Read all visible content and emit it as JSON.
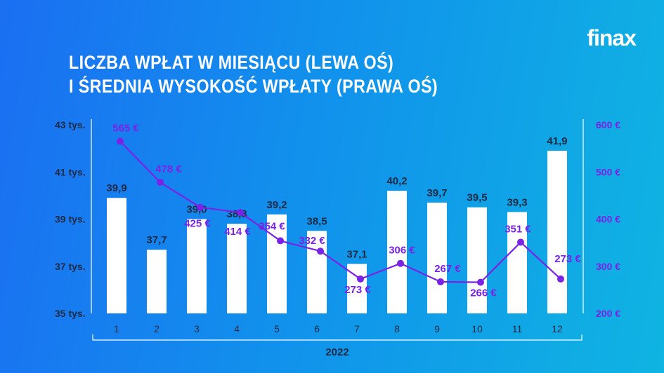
{
  "title": {
    "line1": "Liczba wpłat w miesiącu (lewa oś)",
    "line2": "i średnia wysokość wpłaty (prawa oś)"
  },
  "logo": "finax",
  "chart_data": {
    "type": "bar",
    "categories": [
      "1",
      "2",
      "3",
      "4",
      "5",
      "6",
      "7",
      "8",
      "9",
      "10",
      "11",
      "12"
    ],
    "series": [
      {
        "kind": "bar",
        "axis": "left",
        "values": [
          39.9,
          37.7,
          39.0,
          38.8,
          39.2,
          38.5,
          37.1,
          40.2,
          39.7,
          39.5,
          39.3,
          41.9
        ],
        "labels": [
          "39,9",
          "37,7",
          "39,0",
          "38,8",
          "39,2",
          "38,5",
          "37,1",
          "40,2",
          "39,7",
          "39,5",
          "39,3",
          "41,9"
        ]
      },
      {
        "kind": "line",
        "axis": "right",
        "values": [
          565,
          478,
          425,
          414,
          354,
          332,
          273,
          306,
          267,
          266,
          351,
          273
        ],
        "labels": [
          "565 €",
          "478 €",
          "425 €",
          "414 €",
          "354 €",
          "332 €",
          "273 €",
          "306 €",
          "267 €",
          "266 €",
          "351 €",
          "273 €"
        ]
      }
    ],
    "left_axis": {
      "ticks": [
        35,
        37,
        39,
        41,
        43
      ],
      "tick_labels": [
        "35 tys.",
        "37 tys.",
        "39 tys.",
        "41 tys.",
        "43 tys."
      ],
      "range": [
        35,
        43
      ]
    },
    "right_axis": {
      "ticks": [
        200,
        300,
        400,
        500,
        600
      ],
      "tick_labels": [
        "200 €",
        "300 €",
        "400 €",
        "500 €",
        "600 €"
      ],
      "range": [
        200,
        600
      ]
    },
    "xlabel": "2022",
    "grid": false,
    "colors": {
      "bars": "#ffffff",
      "line": "#7a22e6",
      "text": "#1e2a44"
    }
  }
}
